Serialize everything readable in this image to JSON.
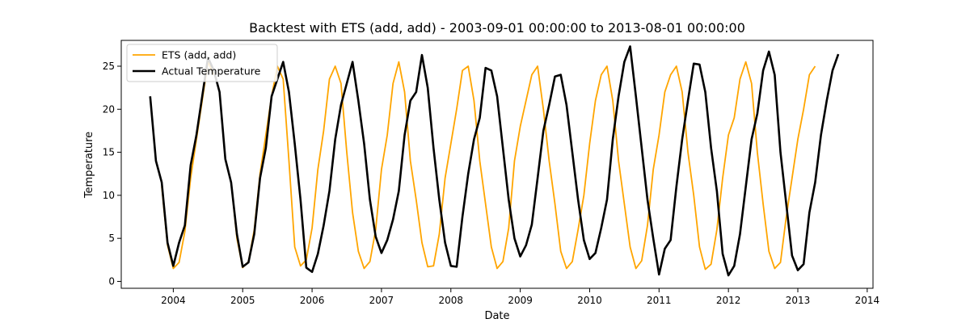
{
  "chart_data": {
    "type": "line",
    "title": "Backtest with ETS (add, add) - 2003-09-01 00:00:00 to 2013-08-01 00:00:00",
    "xlabel": "Date",
    "ylabel": "Temperature",
    "xlim": [
      "2003-04-01",
      "2014-02-01"
    ],
    "ylim": [
      -0.8,
      28
    ],
    "xticks": [
      "2004",
      "2005",
      "2006",
      "2007",
      "2008",
      "2009",
      "2010",
      "2011",
      "2012",
      "2013",
      "2014"
    ],
    "yticks": [
      "0",
      "5",
      "10",
      "15",
      "20",
      "25"
    ],
    "grid": false,
    "legend": "top-left",
    "x_start": "2003-09",
    "x_end": "2013-08",
    "x_step": "monthly",
    "series": [
      {
        "name": "ETS (add, add)",
        "color": "#ffa500",
        "values": [
          null,
          null,
          11.0,
          4.2,
          1.5,
          2.2,
          5.8,
          12.0,
          16.5,
          21.0,
          25.5,
          24.0,
          null,
          null,
          11.5,
          5.0,
          1.6,
          2.3,
          6.0,
          12.5,
          17.0,
          21.5,
          25.0,
          23.5,
          14.0,
          4.0,
          1.8,
          2.5,
          6.2,
          13.0,
          17.5,
          23.5,
          25.0,
          23.0,
          15.0,
          8.0,
          3.5,
          1.5,
          2.3,
          6.0,
          13.0,
          17.0,
          23.0,
          25.5,
          22.0,
          14.0,
          9.5,
          4.5,
          1.7,
          1.8,
          5.5,
          12.0,
          16.0,
          20.0,
          24.5,
          25.0,
          21.0,
          14.0,
          9.0,
          4.0,
          1.5,
          2.3,
          6.2,
          14.0,
          18.0,
          21.0,
          24.0,
          25.0,
          20.0,
          14.0,
          9.0,
          3.5,
          1.5,
          2.3,
          6.0,
          10.0,
          16.0,
          21.0,
          24.0,
          25.0,
          21.0,
          14.0,
          9.0,
          4.0,
          1.5,
          2.4,
          6.5,
          13.0,
          17.0,
          22.0,
          24.0,
          25.0,
          22.0,
          15.0,
          10.0,
          4.0,
          1.4,
          2.0,
          6.0,
          12.0,
          17.0,
          19.0,
          23.5,
          25.5,
          23.0,
          15.0,
          9.0,
          3.5,
          1.5,
          2.2,
          7.5,
          12.0,
          16.5,
          20.0,
          24.0,
          25.0
        ]
      },
      {
        "name": "Actual Temperature",
        "color": "#000000",
        "values": [
          21.5,
          14.0,
          11.5,
          4.5,
          1.8,
          4.5,
          6.5,
          13.5,
          17.0,
          21.5,
          26.0,
          24.5,
          22.0,
          14.2,
          11.5,
          5.5,
          1.7,
          2.2,
          5.5,
          12.0,
          15.5,
          21.5,
          23.5,
          25.5,
          22.0,
          16.0,
          9.5,
          1.6,
          1.1,
          3.2,
          6.5,
          10.5,
          16.5,
          20.5,
          23.0,
          25.5,
          21.0,
          16.0,
          9.5,
          5.2,
          3.3,
          4.8,
          7.2,
          10.5,
          17.0,
          21.0,
          22.0,
          26.3,
          22.5,
          15.5,
          9.5,
          4.5,
          1.8,
          1.7,
          7.5,
          12.5,
          16.5,
          19.0,
          24.8,
          24.5,
          21.5,
          15.5,
          9.5,
          5.0,
          2.9,
          4.2,
          6.6,
          12.0,
          17.5,
          20.5,
          23.8,
          24.0,
          20.5,
          15.0,
          9.5,
          4.8,
          2.6,
          3.3,
          6.2,
          9.5,
          16.5,
          21.5,
          25.5,
          27.3,
          21.5,
          15.5,
          9.5,
          5.0,
          0.8,
          3.8,
          4.8,
          11.0,
          16.5,
          21.0,
          25.3,
          25.2,
          22.0,
          15.5,
          10.5,
          3.2,
          0.7,
          1.8,
          5.5,
          11.0,
          16.5,
          19.5,
          24.5,
          26.7,
          24.0,
          15.0,
          9.0,
          3.0,
          1.3,
          2.0,
          8.0,
          11.5,
          17.0,
          21.0,
          24.5,
          26.4
        ]
      }
    ]
  }
}
